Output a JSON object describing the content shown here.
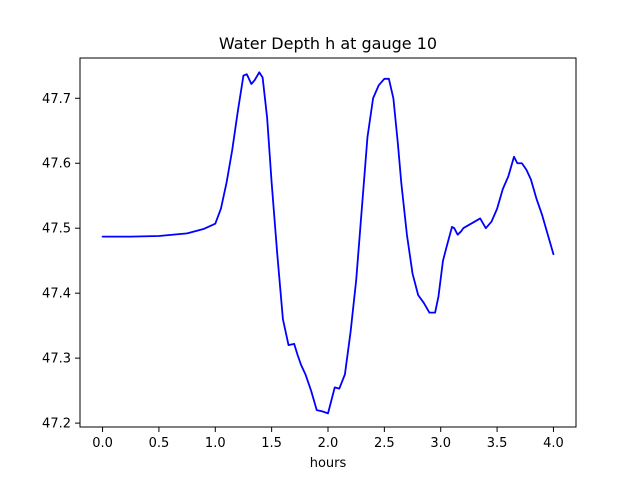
{
  "chart_data": {
    "type": "line",
    "title": "Water Depth h at gauge 10",
    "xlabel": "hours",
    "ylabel": "",
    "xlim": [
      -0.2,
      4.2
    ],
    "ylim": [
      47.194,
      47.762
    ],
    "xticks": [
      0.0,
      0.5,
      1.0,
      1.5,
      2.0,
      2.5,
      3.0,
      3.5,
      4.0
    ],
    "xtick_labels": [
      "0.0",
      "0.5",
      "1.0",
      "1.5",
      "2.0",
      "2.5",
      "3.0",
      "3.5",
      "4.0"
    ],
    "yticks": [
      47.2,
      47.3,
      47.4,
      47.5,
      47.6,
      47.7
    ],
    "ytick_labels": [
      "47.2",
      "47.3",
      "47.4",
      "47.5",
      "47.6",
      "47.7"
    ],
    "grid": false,
    "series": [
      {
        "color": "#0000ff",
        "x": [
          0.0,
          0.25,
          0.5,
          0.75,
          0.9,
          1.0,
          1.05,
          1.1,
          1.15,
          1.2,
          1.25,
          1.28,
          1.32,
          1.35,
          1.39,
          1.42,
          1.46,
          1.5,
          1.55,
          1.6,
          1.65,
          1.7,
          1.73,
          1.76,
          1.8,
          1.85,
          1.9,
          1.95,
          2.0,
          2.03,
          2.06,
          2.1,
          2.15,
          2.2,
          2.25,
          2.3,
          2.35,
          2.4,
          2.45,
          2.5,
          2.54,
          2.58,
          2.62,
          2.65,
          2.7,
          2.75,
          2.8,
          2.85,
          2.9,
          2.95,
          2.98,
          3.02,
          3.05,
          3.1,
          3.12,
          3.15,
          3.18,
          3.2,
          3.25,
          3.3,
          3.35,
          3.4,
          3.45,
          3.5,
          3.55,
          3.6,
          3.65,
          3.68,
          3.72,
          3.76,
          3.8,
          3.85,
          3.9,
          3.95,
          4.0
        ],
        "y": [
          47.487,
          47.487,
          47.488,
          47.492,
          47.499,
          47.507,
          47.53,
          47.57,
          47.62,
          47.68,
          47.735,
          47.737,
          47.722,
          47.728,
          47.74,
          47.732,
          47.67,
          47.57,
          47.46,
          47.36,
          47.32,
          47.322,
          47.305,
          47.29,
          47.275,
          47.25,
          47.22,
          47.218,
          47.215,
          47.235,
          47.255,
          47.253,
          47.275,
          47.34,
          47.42,
          47.53,
          47.64,
          47.7,
          47.72,
          47.73,
          47.73,
          47.7,
          47.63,
          47.57,
          47.49,
          47.43,
          47.397,
          47.385,
          47.37,
          47.37,
          47.395,
          47.45,
          47.47,
          47.502,
          47.5,
          47.49,
          47.495,
          47.5,
          47.505,
          47.51,
          47.515,
          47.5,
          47.51,
          47.53,
          47.56,
          47.58,
          47.61,
          47.6,
          47.6,
          47.59,
          47.575,
          47.545,
          47.52,
          47.49,
          47.46
        ]
      }
    ]
  }
}
